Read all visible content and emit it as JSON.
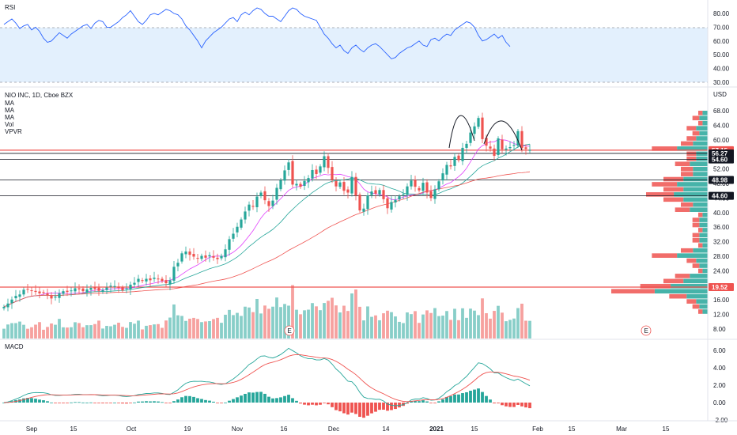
{
  "rsi": {
    "title": "RSI",
    "ticks": [
      "80.00",
      "70.00",
      "60.00",
      "50.00",
      "40.00",
      "30.00"
    ],
    "upper": 70,
    "lower": 30,
    "values": [
      72,
      74,
      76,
      73,
      69,
      71,
      72,
      68,
      70,
      67,
      62,
      59,
      60,
      63,
      66,
      64,
      62,
      65,
      67,
      69,
      71,
      72,
      69,
      73,
      75,
      74,
      70,
      70,
      72,
      74,
      77,
      79,
      82,
      78,
      74,
      72,
      75,
      79,
      80,
      79,
      81,
      83,
      82,
      80,
      79,
      76,
      71,
      68,
      64,
      60,
      55,
      60,
      63,
      66,
      68,
      70,
      73,
      76,
      77,
      74,
      79,
      81,
      79,
      82,
      84,
      83,
      80,
      78,
      78,
      76,
      74,
      78,
      82,
      84,
      83,
      80,
      78,
      77,
      76,
      75,
      70,
      65,
      62,
      58,
      55,
      57,
      53,
      51,
      55,
      57,
      54,
      52,
      55,
      57,
      58,
      56,
      53,
      50,
      47,
      48,
      51,
      53,
      55,
      56,
      58,
      60,
      57,
      56,
      61,
      62,
      60,
      63,
      65,
      64,
      68,
      70,
      72,
      74,
      73,
      70,
      64,
      60,
      61,
      63,
      65,
      62,
      64,
      59,
      56
    ]
  },
  "price": {
    "symbol": "NIO INC, 1D, Cboe BZX",
    "indicators": [
      "MA",
      "MA",
      "MA",
      "Vol",
      "VPVR"
    ],
    "currency": "USD",
    "ticks": [
      "68.00",
      "64.00",
      "60.00",
      "56.00",
      "52.00",
      "48.00",
      "44.00",
      "40.00",
      "36.00",
      "32.00",
      "28.00",
      "24.00",
      "20.00",
      "16.00",
      "12.00",
      "8.00"
    ],
    "levels": [
      {
        "value": 57.15,
        "label": "57.15",
        "color": "#ef5350"
      },
      {
        "value": 56.27,
        "label": "56.27",
        "color": "#131722"
      },
      {
        "value": 54.6,
        "label": "54.60",
        "color": "#131722"
      },
      {
        "value": 48.98,
        "label": "48.98",
        "color": "#131722"
      },
      {
        "value": 44.6,
        "label": "44.60",
        "color": "#131722"
      },
      {
        "value": 19.52,
        "label": "19.52",
        "color": "#ef5350"
      }
    ],
    "earnings_marker": "E"
  },
  "chart_data": [
    {
      "type": "candlestick",
      "title": "NIO INC, 1D, Cboe BZX",
      "x_labels": [
        "Sep",
        "15",
        "Oct",
        "19",
        "Nov",
        "16",
        "Dec",
        "14",
        "2021",
        "15",
        "Feb",
        "15",
        "Mar",
        "15"
      ],
      "ylim": [
        6,
        70
      ],
      "close": [
        14.1,
        15.0,
        16.1,
        17.1,
        17.5,
        18.8,
        19.0,
        18.6,
        18.2,
        17.8,
        18.0,
        17.3,
        16.4,
        16.9,
        17.8,
        18.4,
        18.2,
        18.6,
        19.2,
        18.9,
        18.4,
        18.9,
        19.3,
        19.0,
        18.5,
        18.7,
        19.4,
        19.9,
        19.8,
        19.3,
        18.6,
        19.2,
        20.2,
        20.7,
        21.8,
        21.2,
        21.8,
        21.4,
        22.1,
        21.8,
        21.2,
        20.6,
        21.4,
        25.1,
        26.2,
        28.8,
        29.3,
        28.4,
        27.9,
        27.4,
        28.1,
        27.6,
        28.3,
        27.6,
        27.2,
        28.1,
        29.9,
        32.7,
        34.2,
        36.1,
        38.1,
        40.3,
        42.2,
        41.6,
        44.4,
        45.5,
        43.4,
        41.8,
        43.3,
        46.8,
        48.9,
        51.6,
        53.8,
        47.7,
        47.9,
        47.1,
        48.7,
        49.5,
        51.7,
        50.6,
        52.7,
        55.5,
        52.3,
        49.0,
        47.2,
        48.3,
        46.0,
        45.5,
        49.8,
        44.7,
        40.6,
        41.1,
        44.7,
        45.8,
        45.2,
        46.2,
        43.7,
        41.2,
        42.9,
        43.5,
        44.5,
        45.1,
        47.2,
        48.8,
        47.1,
        46.1,
        48.2,
        45.5,
        44.0,
        46.4,
        48.6,
        50.8,
        53.1,
        52.7,
        55.3,
        54.4,
        57.8,
        58.9,
        62.0,
        63.7,
        66.0,
        60.2,
        58.4,
        57.6,
        55.6,
        60.4,
        57.4,
        57.6,
        58.0,
        58.6,
        62.4,
        57.7,
        57.5,
        57.2
      ],
      "volume_bars": 128,
      "ma_periods": [
        10,
        20,
        50
      ],
      "volume_profile_levels": 40
    },
    {
      "type": "line",
      "title": "MACD",
      "ticks": [
        "6.00",
        "4.00",
        "2.00",
        "0.00",
        "-2.00"
      ],
      "ylim": [
        -2.8,
        7.0
      ],
      "series": [
        "macd",
        "signal",
        "histogram"
      ]
    }
  ],
  "macd": {
    "title": "MACD",
    "ticks": [
      "6.00",
      "4.00",
      "2.00",
      "0.00",
      "-2.00"
    ]
  },
  "colors": {
    "up": "#26a69a",
    "down": "#ef5350",
    "rsi_line": "#2962ff",
    "ma_fast": "#e040fb",
    "ma_mid": "#26a69a",
    "ma_slow": "#ef5350",
    "rsi_band": "#e3f0fd"
  },
  "x_labels": [
    "Sep",
    "15",
    "Oct",
    "19",
    "Nov",
    "16",
    "Dec",
    "14",
    "2021",
    "15",
    "Feb",
    "15",
    "Mar",
    "15"
  ]
}
